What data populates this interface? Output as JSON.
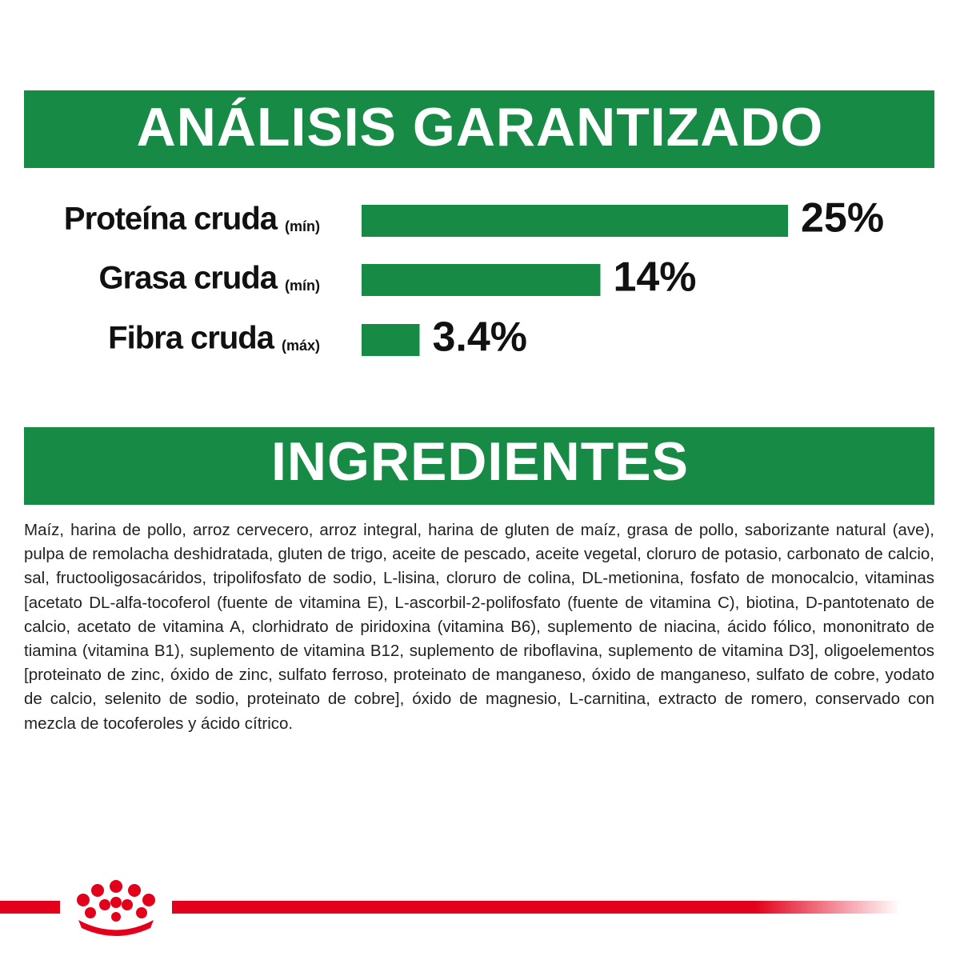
{
  "chart_data": {
    "type": "bar",
    "title": "ANÁLISIS GARANTIZADO",
    "categories": [
      "Proteína cruda",
      "Grasa cruda",
      "Fibra cruda"
    ],
    "qualifiers": [
      "(mín)",
      "(mín)",
      "(máx)"
    ],
    "values": [
      25,
      14,
      3.4
    ],
    "value_labels": [
      "25%",
      "14%",
      "3.4%"
    ],
    "color": "#178a45"
  },
  "ingredients": {
    "title": "INGREDIENTES",
    "text": "Maíz, harina de pollo, arroz cervecero, arroz integral, harina de gluten de maíz, grasa de pollo, saborizante natural (ave), pulpa de remolacha deshidratada, gluten de trigo, aceite de pescado, aceite vegetal, cloruro de potasio, carbonato de calcio, sal, fructooligosacáridos, tripolifosfato de sodio, L-lisina, cloruro de colina, DL-metionina, fosfato de monocalcio, vitaminas [acetato DL-alfa-tocoferol (fuente de vitamina E), L-ascorbil-2-polifosfato (fuente de vitamina C), biotina, D-pantotenato de calcio, acetato de vitamina A, clorhidrato de piridoxina (vitamina B6), suplemento de niacina, ácido fólico, mononitrato de tiamina (vitamina B1), suplemento de vitamina B12, suplemento de riboflavina, suplemento de vitamina D3], oligoelementos [proteinato de zinc, óxido de zinc, sulfato ferroso, proteinato de manganeso, óxido de manganeso, sulfato de cobre, yodato de calcio, selenito de sodio, proteinato de cobre], óxido de magnesio, L-carnitina, extracto de romero, conservado con mezcla de tocoferoles y ácido cítrico."
  }
}
